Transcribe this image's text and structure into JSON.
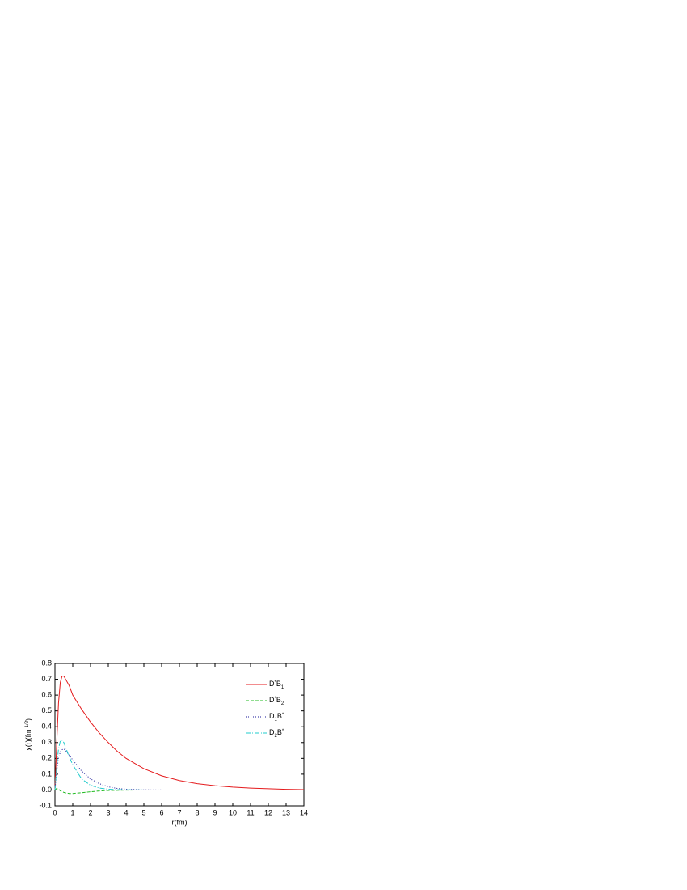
{
  "chart_data": {
    "type": "line",
    "xlabel": "r(fm)",
    "ylabel": "χ(r)(fm-1/2)",
    "x": [
      0,
      0.1,
      0.2,
      0.3,
      0.4,
      0.5,
      0.6,
      0.8,
      1,
      1.5,
      2,
      2.5,
      3,
      3.5,
      4,
      5,
      6,
      7,
      8,
      9,
      10,
      11,
      12,
      13,
      14
    ],
    "series": [
      {
        "name": "D*B1",
        "color": "#e41a1c",
        "dash": "solid",
        "values": [
          0,
          0.3,
          0.55,
          0.68,
          0.72,
          0.72,
          0.7,
          0.66,
          0.6,
          0.51,
          0.43,
          0.36,
          0.3,
          0.245,
          0.2,
          0.135,
          0.09,
          0.06,
          0.04,
          0.027,
          0.018,
          0.012,
          0.008,
          0.004,
          0.002
        ]
      },
      {
        "name": "D*B2",
        "color": "#22bb22",
        "dash": "dashed",
        "values": [
          0,
          0.01,
          0.005,
          -0.005,
          -0.01,
          -0.015,
          -0.018,
          -0.022,
          -0.022,
          -0.017,
          -0.011,
          -0.006,
          -0.003,
          -0.002,
          -0.001,
          0,
          0,
          0,
          0,
          0,
          0,
          0,
          0,
          0,
          0
        ]
      },
      {
        "name": "D1B*",
        "color": "#1a1a99",
        "dash": "dotted",
        "values": [
          0,
          0.12,
          0.2,
          0.24,
          0.255,
          0.26,
          0.25,
          0.22,
          0.19,
          0.12,
          0.07,
          0.04,
          0.02,
          0.01,
          0.005,
          0.001,
          0,
          0,
          0,
          0,
          0,
          0,
          0,
          0,
          0
        ]
      },
      {
        "name": "D2B*",
        "color": "#22cccc",
        "dash": "dashdot",
        "values": [
          0,
          0.15,
          0.26,
          0.31,
          0.315,
          0.3,
          0.27,
          0.21,
          0.16,
          0.07,
          0.03,
          0.012,
          0.005,
          0.002,
          0.001,
          0,
          0,
          0,
          0,
          0,
          0,
          0,
          0,
          0,
          0
        ]
      }
    ],
    "xlim": [
      0,
      14
    ],
    "xticks": [
      0,
      1,
      2,
      3,
      4,
      5,
      6,
      7,
      8,
      9,
      10,
      11,
      12,
      13,
      14
    ],
    "ylim": [
      -0.1,
      0.8
    ],
    "yticks": [
      -0.1,
      {
        "value": 0,
        "label": "0.0"
      },
      0.1,
      0.2,
      0.3,
      0.4,
      0.5,
      0.6,
      0.7,
      0.8
    ],
    "legend": "upper right"
  }
}
